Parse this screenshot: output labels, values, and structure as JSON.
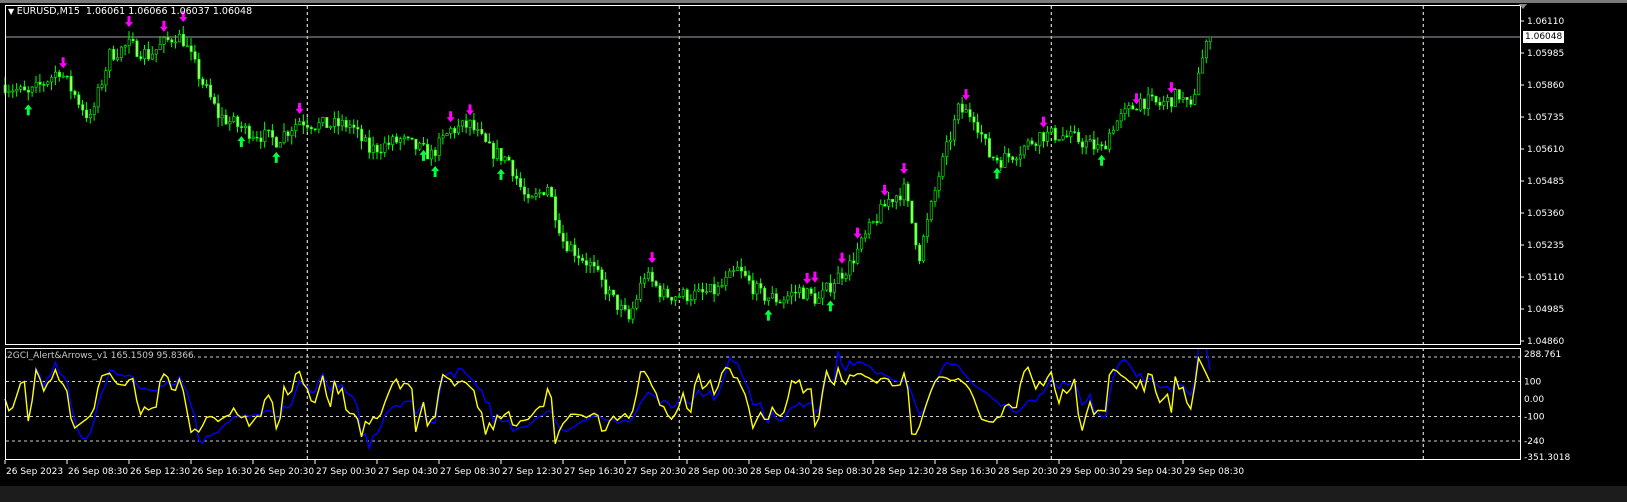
{
  "header": {
    "symbol_timeframe": "EURUSD,M15",
    "ohlc": "1.06061 1.06066 1.06037 1.06048",
    "menu_icon": "triangle-down-icon"
  },
  "price_axis": {
    "ticks": [
      "1.06110",
      "1.05985",
      "1.05860",
      "1.05735",
      "1.05610",
      "1.05485",
      "1.05360",
      "1.05235",
      "1.05110",
      "1.04985",
      "1.04860"
    ],
    "current_price": "1.06048"
  },
  "indicator": {
    "label": "2GCI_Alert&Arrows_v1 165.1509 95.8366",
    "axis_max": "288.761",
    "axis_min": "-351.3018",
    "levels": [
      "240",
      "100",
      "0.00",
      "-100",
      "-240"
    ]
  },
  "time_axis": {
    "labels": [
      "26 Sep 2023",
      "26 Sep 08:30",
      "26 Sep 12:30",
      "26 Sep 16:30",
      "26 Sep 20:30",
      "27 Sep 00:30",
      "27 Sep 04:30",
      "27 Sep 08:30",
      "27 Sep 12:30",
      "27 Sep 16:30",
      "27 Sep 20:30",
      "28 Sep 00:30",
      "28 Sep 04:30",
      "28 Sep 08:30",
      "28 Sep 12:30",
      "28 Sep 16:30",
      "28 Sep 20:30",
      "29 Sep 00:30",
      "29 Sep 04:30",
      "29 Sep 08:30"
    ]
  },
  "colors": {
    "candle": "#00ff00",
    "candle_body": "#9cff6a",
    "up_arrow": "#00ff3c",
    "down_arrow": "#ff00ff",
    "cci_fast": "#ffff00",
    "cci_slow": "#0000ff",
    "grid": "#ffffff"
  },
  "chart_data": {
    "type": "candlestick",
    "timeframe": "M15",
    "ylim": [
      1.0486,
      1.0611
    ],
    "grid": false,
    "close_path": [
      [
        "2023-09-26 04:30",
        1.0586
      ],
      [
        "2023-09-26 06:00",
        1.05821
      ],
      [
        "2023-09-26 08:00",
        1.05919
      ],
      [
        "2023-09-26 10:00",
        1.05723
      ],
      [
        "2023-09-26 11:15",
        1.05977
      ],
      [
        "2023-09-26 12:30",
        1.06016
      ],
      [
        "2023-09-26 13:45",
        1.05977
      ],
      [
        "2023-09-26 15:30",
        1.06055
      ],
      [
        "2023-09-26 16:00",
        1.06036
      ],
      [
        "2023-09-26 17:00",
        1.05899
      ],
      [
        "2023-09-26 18:15",
        1.05743
      ],
      [
        "2023-09-26 20:00",
        1.05684
      ],
      [
        "2023-09-26 22:00",
        1.05645
      ],
      [
        "2023-09-26 23:30",
        1.05723
      ],
      [
        "2023-09-27 00:45",
        1.05704
      ],
      [
        "2023-09-27 02:45",
        1.05704
      ],
      [
        "2023-09-27 04:00",
        1.05606
      ],
      [
        "2023-09-27 06:00",
        1.05645
      ],
      [
        "2023-09-27 08:00",
        1.05587
      ],
      [
        "2023-09-27 09:15",
        1.05684
      ],
      [
        "2023-09-27 10:30",
        1.05704
      ],
      [
        "2023-09-27 11:45",
        1.05606
      ],
      [
        "2023-09-27 13:00",
        1.05567
      ],
      [
        "2023-09-27 14:15",
        1.05391
      ],
      [
        "2023-09-27 15:30",
        1.05469
      ],
      [
        "2023-09-27 16:30",
        1.05255
      ],
      [
        "2023-09-27 18:15",
        1.05157
      ],
      [
        "2023-09-27 19:30",
        1.0504
      ],
      [
        "2023-09-27 20:45",
        1.04942
      ],
      [
        "2023-09-27 21:45",
        1.05118
      ],
      [
        "2023-09-27 23:00",
        1.0504
      ],
      [
        "2023-09-28 01:15",
        1.0504
      ],
      [
        "2023-09-28 02:30",
        1.05059
      ],
      [
        "2023-09-28 03:45",
        1.05137
      ],
      [
        "2023-09-28 05:15",
        1.0504
      ],
      [
        "2023-09-28 06:30",
        1.0502
      ],
      [
        "2023-09-28 07:45",
        1.05059
      ],
      [
        "2023-09-28 09:00",
        1.0502
      ],
      [
        "2023-09-28 10:00",
        1.05098
      ],
      [
        "2023-09-28 11:00",
        1.05157
      ],
      [
        "2023-09-28 12:15",
        1.05294
      ],
      [
        "2023-09-28 13:30",
        1.05411
      ],
      [
        "2023-09-28 14:30",
        1.0545
      ],
      [
        "2023-09-28 15:30",
        1.05196
      ],
      [
        "2023-09-28 16:45",
        1.05508
      ],
      [
        "2023-09-28 18:00",
        1.05762
      ],
      [
        "2023-09-28 19:00",
        1.05743
      ],
      [
        "2023-09-28 20:00",
        1.05587
      ],
      [
        "2023-09-28 20:45",
        1.05567
      ],
      [
        "2023-09-28 22:00",
        1.05606
      ],
      [
        "2023-09-28 23:15",
        1.05665
      ],
      [
        "2023-09-29 00:30",
        1.05665
      ],
      [
        "2023-09-29 01:45",
        1.05645
      ],
      [
        "2023-09-29 03:15",
        1.05606
      ],
      [
        "2023-09-29 04:00",
        1.05704
      ],
      [
        "2023-09-29 05:45",
        1.05801
      ],
      [
        "2023-09-29 07:00",
        1.05782
      ],
      [
        "2023-09-29 08:15",
        1.05821
      ],
      [
        "2023-09-29 09:00",
        1.05762
      ],
      [
        "2023-09-29 09:30",
        1.05919
      ],
      [
        "2023-09-29 10:15",
        1.06048
      ]
    ],
    "down_arrows": [
      "2023-09-26 08:15",
      "2023-09-26 12:30",
      "2023-09-26 14:45",
      "2023-09-26 16:00",
      "2023-09-26 23:30",
      "2023-09-27 09:15",
      "2023-09-27 10:30",
      "2023-09-27 22:15",
      "2023-09-28 08:15",
      "2023-09-28 08:45",
      "2023-09-28 10:30",
      "2023-09-28 11:30",
      "2023-09-28 13:15",
      "2023-09-28 14:30",
      "2023-09-28 18:30",
      "2023-09-28 23:30",
      "2023-09-29 05:30",
      "2023-09-29 07:45"
    ],
    "up_arrows": [
      "2023-09-26 06:00",
      "2023-09-26 19:45",
      "2023-09-26 22:00",
      "2023-09-27 07:30",
      "2023-09-27 08:15",
      "2023-09-27 12:30",
      "2023-09-28 05:45",
      "2023-09-28 09:45",
      "2023-09-28 20:30",
      "2023-09-29 03:15"
    ],
    "period_separators": [
      "2023-09-27 00:00",
      "2023-09-28 00:00",
      "2023-09-29 00:00",
      "2023-09-30 00:00"
    ],
    "indicator": {
      "ylim": [
        -351.3018,
        288.761
      ],
      "levels": [
        240,
        100,
        0,
        -100,
        -240
      ],
      "last_values": [
        165.1509,
        95.8366
      ]
    }
  }
}
